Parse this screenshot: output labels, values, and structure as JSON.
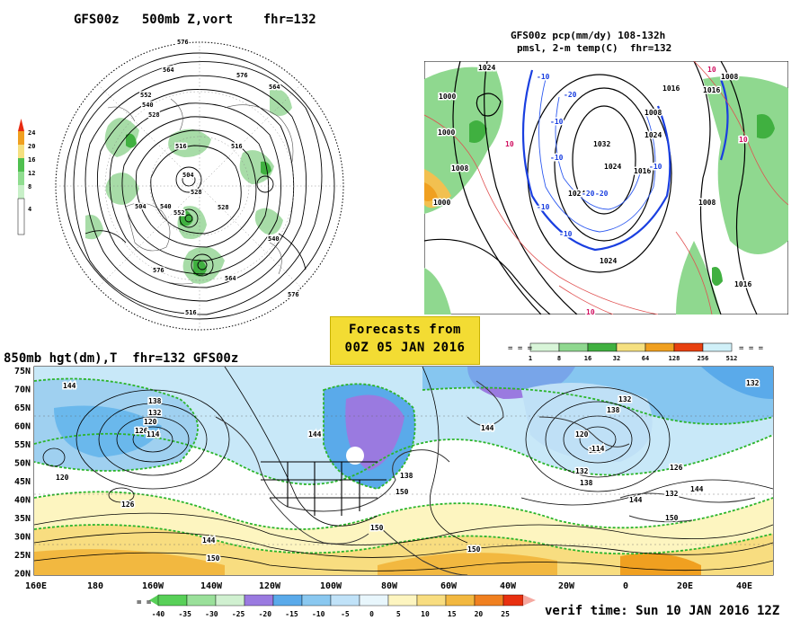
{
  "panels": {
    "top_left": {
      "title": "GFS00z   500mb Z,vort    fhr=132",
      "colorbar": [
        "24",
        "20",
        "16",
        "12",
        "8",
        "4"
      ],
      "contour_labels": [
        "576",
        "564",
        "552",
        "540",
        "528",
        "516",
        "504",
        "576",
        "564",
        "528",
        "552",
        "540",
        "516",
        "528",
        "504",
        "540",
        "576",
        "516",
        "564",
        "576"
      ]
    },
    "top_right": {
      "title_line1": "GFS00z pcp(mm/dy) 108-132h",
      "title_line2": "pmsl, 2-m temp(C)  fhr=132",
      "colorbar": [
        "1",
        "8",
        "16",
        "32",
        "64",
        "128",
        "256",
        "512"
      ],
      "contour_labels": [
        "1024",
        "1000",
        "1000",
        "1008",
        "1000",
        "1016",
        "1024",
        "1032",
        "1024",
        "1024",
        "1016",
        "1008",
        "1008",
        "1024",
        "1016",
        "1008",
        "1016"
      ],
      "temp_labels": [
        "-10",
        "-20",
        "-10",
        "-10",
        "-20",
        "-10",
        "-10",
        "-20",
        "-10",
        "10",
        "10",
        "10",
        "10"
      ]
    },
    "bottom": {
      "title": "850mb hgt(dm),T  fhr=132 GFS00z",
      "lat_labels": [
        "75N",
        "70N",
        "65N",
        "60N",
        "55N",
        "50N",
        "45N",
        "40N",
        "35N",
        "30N",
        "25N",
        "20N"
      ],
      "lon_labels": [
        "160E",
        "180",
        "160W",
        "140W",
        "120W",
        "100W",
        "80W",
        "60W",
        "40W",
        "20W",
        "0",
        "20E",
        "40E"
      ],
      "colorbar": [
        "-40",
        "-35",
        "-30",
        "-25",
        "-20",
        "-15",
        "-10",
        "-5",
        "0",
        "5",
        "10",
        "15",
        "20",
        "25"
      ],
      "contour_labels": [
        "144",
        "138",
        "132",
        "120",
        "126",
        "114",
        "120",
        "126",
        "144",
        "138",
        "150",
        "144",
        "132",
        "138",
        "150",
        "144",
        "150",
        "132",
        "138",
        "126",
        "132",
        "138",
        "114",
        "120",
        "144",
        "150",
        "132",
        "150",
        "144"
      ]
    }
  },
  "forecast_box": {
    "line1": "Forecasts from",
    "line2": "00Z 05 JAN 2016"
  },
  "verif_time": "verif time: Sun 10 JAN 2016 12Z",
  "colors": {
    "yellow_box": "#f3dc33",
    "land_white": "#ffffff",
    "ocean_blue": "#7ec8f0"
  }
}
